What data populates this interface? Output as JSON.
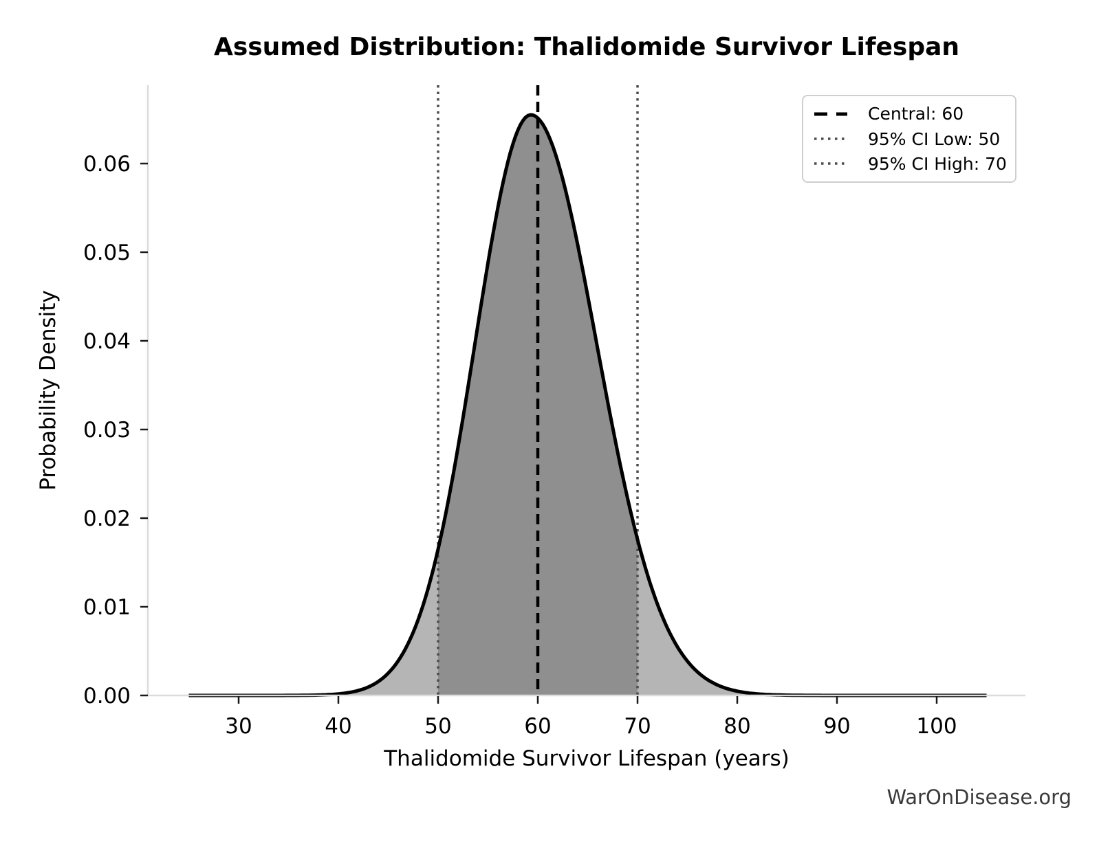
{
  "figure": {
    "watermark": "WarOnDisease.org"
  },
  "chart_data": {
    "type": "area",
    "title": "Assumed Distribution: Thalidomide Survivor Lifespan",
    "xlabel": "Thalidomide Survivor Lifespan (years)",
    "ylabel": "Probability Density",
    "x_ticks": [
      "30",
      "40",
      "50",
      "60",
      "70",
      "80",
      "90",
      "100"
    ],
    "y_ticks": [
      "0.00",
      "0.01",
      "0.02",
      "0.03",
      "0.04",
      "0.05",
      "0.06"
    ],
    "xlim": [
      21,
      109
    ],
    "ylim": [
      0,
      0.0688
    ],
    "grid": false,
    "curve": {
      "shape": "skewed-gaussian",
      "x_min": 25,
      "x_max": 105,
      "peak_x": 59.3,
      "peak_density": 0.0655,
      "sigma_left": 5.6,
      "sigma_right": 6.6
    },
    "central": 60,
    "ci_low": 50,
    "ci_high": 70,
    "legend": {
      "position": "upper right",
      "items": [
        {
          "label": "Central: 60",
          "style": "dashed",
          "color": "#000000"
        },
        {
          "label": "95% CI Low: 50",
          "style": "dotted",
          "color": "#4d4d4d"
        },
        {
          "label": "95% CI High: 70",
          "style": "dotted",
          "color": "#4d4d4d"
        }
      ]
    },
    "colors": {
      "curve": "#000000",
      "fill": "#b5b5b5",
      "fill_ci": "#8f8f8f",
      "central_line": "#000000",
      "ci_line": "#4d4d4d",
      "spine": "#dcdcdc",
      "tick": "#1a1a1a",
      "watermark": "#3a3a3a"
    }
  }
}
